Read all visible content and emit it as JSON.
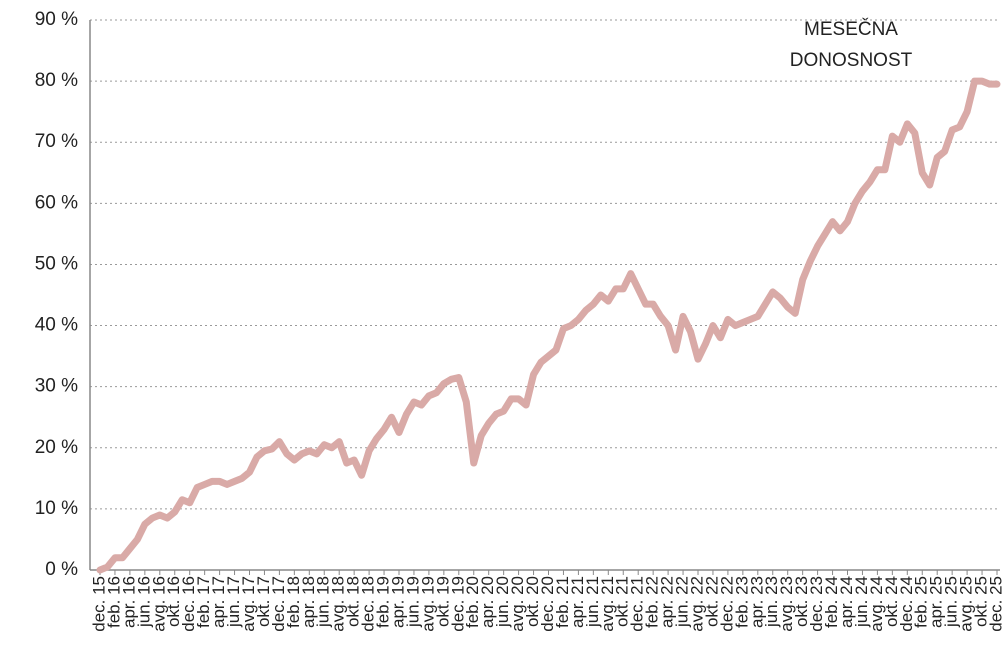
{
  "chart_data": {
    "type": "line",
    "title": [
      "MESEČNA",
      "DONOSNOST"
    ],
    "categories": [
      "dec. 15",
      null,
      "feb. 16",
      null,
      "apr. 16",
      null,
      "jun. 16",
      null,
      "avg. 16",
      null,
      "okt. 16",
      null,
      "dec. 16",
      null,
      "feb. 17",
      null,
      "apr. 17",
      null,
      "jun. 17",
      null,
      "avg. 17",
      null,
      "okt. 17",
      null,
      "dec. 17",
      null,
      "feb. 18",
      null,
      "apr. 18",
      null,
      "jun. 18",
      null,
      "avg. 18",
      null,
      "okt. 18",
      null,
      "dec. 18",
      null,
      "feb. 19",
      null,
      "apr. 19",
      null,
      "jun. 19",
      null,
      "avg. 19",
      null,
      "okt. 19",
      null,
      "dec. 19",
      null,
      "feb. 20",
      null,
      "apr. 20",
      null,
      "jun. 20",
      null,
      "avg. 20",
      null,
      "okt. 20",
      null,
      "dec. 20",
      null,
      "feb. 21",
      null,
      "apr. 21",
      null,
      "jun. 21",
      null,
      "avg. 21",
      null,
      "okt. 21",
      null,
      "dec. 21",
      null,
      "feb. 22",
      null,
      "apr. 22",
      null,
      "jun. 22",
      null,
      "avg. 22",
      null,
      "okt. 22",
      null,
      "dec. 22",
      null,
      "feb. 23",
      null,
      "apr. 23",
      null,
      "jun. 23",
      null,
      "avg. 23",
      null,
      "okt. 23",
      null,
      "dec. 23",
      null,
      "feb. 24",
      null,
      "apr. 24",
      null,
      "jun. 24",
      null,
      "avg. 24",
      null,
      "okt. 24",
      null,
      "dec. 24",
      null,
      "feb. 25",
      null,
      "apr. 25",
      null,
      "jun. 25",
      null,
      "avg. 25",
      null,
      "okt. 25",
      null,
      "dec. 25"
    ],
    "series": [
      {
        "color": "#d9aaa7",
        "values": [
          0,
          0.5,
          2,
          2,
          3.5,
          5,
          7.5,
          8.5,
          9,
          8.5,
          9.5,
          11.5,
          11,
          13.5,
          14,
          14.5,
          14.5,
          14,
          14.5,
          15,
          16,
          18.5,
          19.5,
          19.8,
          21,
          19,
          18,
          19,
          19.5,
          19,
          20.5,
          20,
          21,
          17.5,
          18,
          15.5,
          19.5,
          21.5,
          23,
          25,
          22.5,
          25.5,
          27.5,
          27,
          28.5,
          29,
          30.5,
          31.2,
          31.5,
          27.5,
          17.5,
          22,
          24,
          25.5,
          26,
          28,
          28,
          27,
          32,
          34,
          35,
          36,
          39.5,
          40,
          41,
          42.5,
          43.5,
          45,
          44,
          46,
          46,
          48.5,
          46,
          43.5,
          43.5,
          41.5,
          40,
          36,
          41.5,
          39,
          34.5,
          37,
          40,
          38,
          41,
          40,
          40.5,
          41,
          41.5,
          43.5,
          45.5,
          44.5,
          43,
          42,
          47.5,
          50.5,
          53,
          55,
          57,
          55.5,
          57,
          60,
          62,
          63.5,
          65.5,
          65.5,
          71,
          70,
          73,
          71.5,
          65,
          63,
          67.5,
          68.5,
          72,
          72.5,
          75,
          80,
          80,
          79.5,
          79.5
        ]
      }
    ],
    "ylim": [
      0,
      90
    ],
    "yticks": [
      {
        "value": 0,
        "label": "0 %"
      },
      {
        "value": 10,
        "label": "10 %"
      },
      {
        "value": 20,
        "label": "20 %"
      },
      {
        "value": 30,
        "label": "30 %"
      },
      {
        "value": 40,
        "label": "40 %"
      },
      {
        "value": 50,
        "label": "50 %"
      },
      {
        "value": 60,
        "label": "60 %"
      },
      {
        "value": 70,
        "label": "70 %"
      },
      {
        "value": 80,
        "label": "80 %"
      },
      {
        "value": 90,
        "label": "90 %"
      }
    ],
    "grid": true
  }
}
